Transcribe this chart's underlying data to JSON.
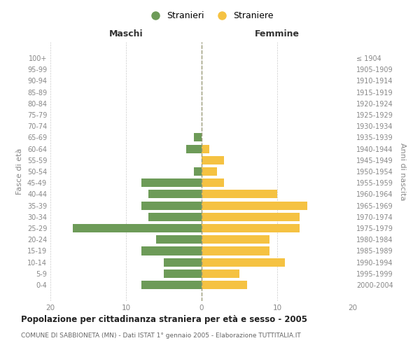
{
  "age_groups": [
    "0-4",
    "5-9",
    "10-14",
    "15-19",
    "20-24",
    "25-29",
    "30-34",
    "35-39",
    "40-44",
    "45-49",
    "50-54",
    "55-59",
    "60-64",
    "65-69",
    "70-74",
    "75-79",
    "80-84",
    "85-89",
    "90-94",
    "95-99",
    "100+"
  ],
  "birth_years": [
    "2000-2004",
    "1995-1999",
    "1990-1994",
    "1985-1989",
    "1980-1984",
    "1975-1979",
    "1970-1974",
    "1965-1969",
    "1960-1964",
    "1955-1959",
    "1950-1954",
    "1945-1949",
    "1940-1944",
    "1935-1939",
    "1930-1934",
    "1925-1929",
    "1920-1924",
    "1915-1919",
    "1910-1914",
    "1905-1909",
    "≤ 1904"
  ],
  "maschi": [
    8,
    5,
    5,
    8,
    6,
    17,
    7,
    8,
    7,
    8,
    1,
    0,
    2,
    1,
    0,
    0,
    0,
    0,
    0,
    0,
    0
  ],
  "femmine": [
    6,
    5,
    11,
    9,
    9,
    13,
    13,
    14,
    10,
    3,
    2,
    3,
    1,
    0,
    0,
    0,
    0,
    0,
    0,
    0,
    0
  ],
  "color_maschi": "#6d9b58",
  "color_femmine": "#f5c242",
  "title": "Popolazione per cittadinanza straniera per età e sesso - 2005",
  "subtitle": "COMUNE DI SABBIONETA (MN) - Dati ISTAT 1° gennaio 2005 - Elaborazione TUTTITALIA.IT",
  "xlabel_left": "Maschi",
  "xlabel_right": "Femmine",
  "ylabel_left": "Fasce di età",
  "ylabel_right": "Anni di nascita",
  "legend_stranieri": "Stranieri",
  "legend_straniere": "Straniere",
  "xlim": [
    -20,
    20
  ],
  "background_color": "#ffffff",
  "grid_color": "#cccccc",
  "bar_height": 0.75
}
